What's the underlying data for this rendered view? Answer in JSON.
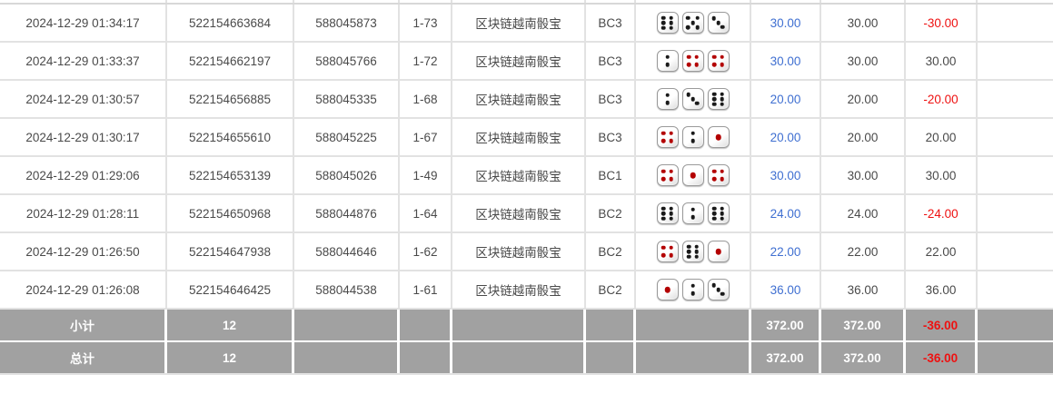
{
  "colors": {
    "bet_amount_blue": "#3f6fd1",
    "loss_red": "#ee1111",
    "summary_bg": "#a1a1a1",
    "summary_text": "#ffffff",
    "row_text": "#4a4a4a",
    "pip_black": "#1a1a1a",
    "pip_red": "#b30000"
  },
  "dice_red_values": [
    1,
    4
  ],
  "table": {
    "rows": [
      {
        "time": "2024-12-29 01:34:17",
        "order_id": "522154663684",
        "round_id": "588045873",
        "period": "1-73",
        "game": "区块链越南骰宝",
        "bet_type": "BC3",
        "dice": [
          6,
          5,
          3
        ],
        "bet_amount": "30.00",
        "valid_amount": "30.00",
        "win_loss": "-30.00"
      },
      {
        "time": "2024-12-29 01:33:37",
        "order_id": "522154662197",
        "round_id": "588045766",
        "period": "1-72",
        "game": "区块链越南骰宝",
        "bet_type": "BC3",
        "dice": [
          2,
          4,
          4
        ],
        "bet_amount": "30.00",
        "valid_amount": "30.00",
        "win_loss": "30.00"
      },
      {
        "time": "2024-12-29 01:30:57",
        "order_id": "522154656885",
        "round_id": "588045335",
        "period": "1-68",
        "game": "区块链越南骰宝",
        "bet_type": "BC3",
        "dice": [
          2,
          3,
          6
        ],
        "bet_amount": "20.00",
        "valid_amount": "20.00",
        "win_loss": "-20.00"
      },
      {
        "time": "2024-12-29 01:30:17",
        "order_id": "522154655610",
        "round_id": "588045225",
        "period": "1-67",
        "game": "区块链越南骰宝",
        "bet_type": "BC3",
        "dice": [
          4,
          2,
          1
        ],
        "bet_amount": "20.00",
        "valid_amount": "20.00",
        "win_loss": "20.00"
      },
      {
        "time": "2024-12-29 01:29:06",
        "order_id": "522154653139",
        "round_id": "588045026",
        "period": "1-49",
        "game": "区块链越南骰宝",
        "bet_type": "BC1",
        "dice": [
          4,
          1,
          4
        ],
        "bet_amount": "30.00",
        "valid_amount": "30.00",
        "win_loss": "30.00"
      },
      {
        "time": "2024-12-29 01:28:11",
        "order_id": "522154650968",
        "round_id": "588044876",
        "period": "1-64",
        "game": "区块链越南骰宝",
        "bet_type": "BC2",
        "dice": [
          6,
          2,
          6
        ],
        "bet_amount": "24.00",
        "valid_amount": "24.00",
        "win_loss": "-24.00"
      },
      {
        "time": "2024-12-29 01:26:50",
        "order_id": "522154647938",
        "round_id": "588044646",
        "period": "1-62",
        "game": "区块链越南骰宝",
        "bet_type": "BC2",
        "dice": [
          4,
          6,
          1
        ],
        "bet_amount": "22.00",
        "valid_amount": "22.00",
        "win_loss": "22.00"
      },
      {
        "time": "2024-12-29 01:26:08",
        "order_id": "522154646425",
        "round_id": "588044538",
        "period": "1-61",
        "game": "区块链越南骰宝",
        "bet_type": "BC2",
        "dice": [
          1,
          2,
          3
        ],
        "bet_amount": "36.00",
        "valid_amount": "36.00",
        "win_loss": "36.00"
      }
    ],
    "summary_rows": [
      {
        "label": "小计",
        "count": "12",
        "bet_amount": "372.00",
        "valid_amount": "372.00",
        "win_loss": "-36.00"
      },
      {
        "label": "总计",
        "count": "12",
        "bet_amount": "372.00",
        "valid_amount": "372.00",
        "win_loss": "-36.00"
      }
    ]
  }
}
